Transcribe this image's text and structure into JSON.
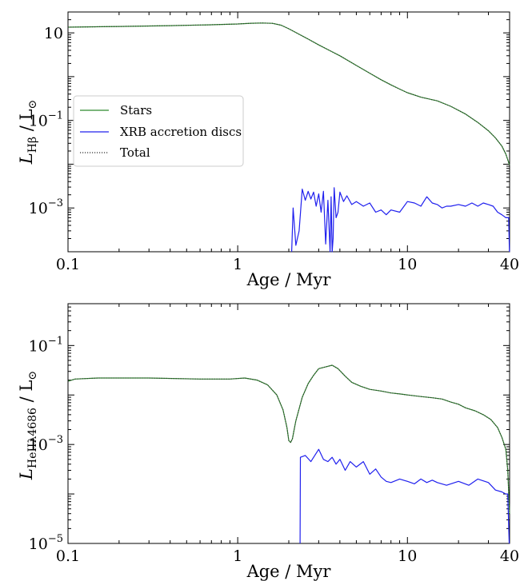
{
  "chart_data": [
    {
      "type": "line",
      "xlabel": "Age / Myr",
      "ylabel": "L_Hβ / L⊙",
      "ylabel_parts": {
        "main": "L",
        "sub": "Hβ",
        "tail": " / L",
        "tail_sub": "⊙"
      },
      "xscale": "log",
      "yscale": "log",
      "xlim": [
        0.1,
        40
      ],
      "ylim": [
        0.0001,
        30
      ],
      "x_ticks": [
        {
          "value": 0.1,
          "label": "0.1"
        },
        {
          "value": 1,
          "label": "1"
        },
        {
          "value": 10,
          "label": "10"
        },
        {
          "value": 40,
          "label": "40"
        }
      ],
      "y_ticks": [
        {
          "value": 10,
          "base": "10",
          "exp": ""
        },
        {
          "value": 0.1,
          "base": "10",
          "exp": "−1"
        },
        {
          "value": 0.001,
          "base": "10",
          "exp": "−3"
        }
      ],
      "legend": {
        "placement": "middle-left",
        "entries": [
          "Stars",
          "XRB accretion discs",
          "Total"
        ]
      },
      "series": [
        {
          "name": "Stars",
          "color": "#2e8b2e",
          "style": "solid",
          "x": [
            0.1,
            0.2,
            0.4,
            0.7,
            1.0,
            1.2,
            1.4,
            1.6,
            1.8,
            2.0,
            2.3,
            2.6,
            3.0,
            3.5,
            4.0,
            5.0,
            6.0,
            7.0,
            8.0,
            9.0,
            10.0,
            12.0,
            15.0,
            18.0,
            22.0,
            26.0,
            30.0,
            33.0,
            36.0,
            38.0,
            40.0
          ],
          "y": [
            13.5,
            14.0,
            14.6,
            15.3,
            16.0,
            16.6,
            16.8,
            16.5,
            15.0,
            12.4,
            9.3,
            7.2,
            5.3,
            3.9,
            3.0,
            1.8,
            1.2,
            0.85,
            0.65,
            0.52,
            0.43,
            0.34,
            0.28,
            0.21,
            0.14,
            0.09,
            0.058,
            0.04,
            0.026,
            0.017,
            0.0095
          ]
        },
        {
          "name": "XRB accretion discs",
          "color": "#2020ee",
          "style": "solid",
          "x": [
            2.08,
            2.12,
            2.2,
            2.3,
            2.4,
            2.5,
            2.6,
            2.7,
            2.8,
            2.9,
            3.0,
            3.1,
            3.2,
            3.3,
            3.4,
            3.5,
            3.55,
            3.6,
            3.65,
            3.7,
            3.8,
            3.9,
            4.0,
            4.2,
            4.4,
            4.7,
            5.0,
            5.5,
            6.0,
            6.5,
            7.0,
            7.5,
            8.0,
            9.0,
            10.0,
            11.0,
            12.0,
            13.0,
            14.0,
            15.0,
            16.0,
            17.0,
            18.0,
            20.0,
            22.0,
            24.0,
            26.0,
            28.0,
            30.0,
            32.0,
            34.0,
            36.0,
            38.0,
            39.5,
            39.9
          ],
          "y": [
            0.0001,
            0.001,
            0.00014,
            0.0003,
            0.0027,
            0.0015,
            0.0024,
            0.0016,
            0.0023,
            0.0011,
            0.0021,
            0.0008,
            0.0024,
            0.00015,
            0.0015,
            0.0001,
            0.0018,
            0.0001,
            0.0002,
            0.0029,
            0.0006,
            0.0008,
            0.0023,
            0.0014,
            0.0019,
            0.0012,
            0.0014,
            0.0011,
            0.0013,
            0.0008,
            0.0009,
            0.0007,
            0.0009,
            0.0008,
            0.0014,
            0.0013,
            0.0011,
            0.0018,
            0.0013,
            0.0012,
            0.001,
            0.0011,
            0.0011,
            0.0012,
            0.0011,
            0.0013,
            0.0011,
            0.0013,
            0.0012,
            0.0011,
            0.0008,
            0.0007,
            0.0006,
            0.0006,
            0.0001
          ]
        },
        {
          "name": "Total",
          "color": "#333333",
          "style": "dotted",
          "x": [
            0.1,
            0.2,
            0.4,
            0.7,
            1.0,
            1.2,
            1.4,
            1.6,
            1.8,
            2.0,
            2.3,
            2.6,
            3.0,
            3.5,
            4.0,
            5.0,
            6.0,
            7.0,
            8.0,
            9.0,
            10.0,
            12.0,
            15.0,
            18.0,
            22.0,
            26.0,
            30.0,
            33.0,
            36.0,
            38.0,
            40.0
          ],
          "y": [
            13.5,
            14.0,
            14.6,
            15.3,
            16.0,
            16.6,
            16.8,
            16.5,
            15.0,
            12.4,
            9.3,
            7.2,
            5.3,
            3.9,
            3.0,
            1.8,
            1.2,
            0.85,
            0.65,
            0.52,
            0.43,
            0.34,
            0.28,
            0.21,
            0.14,
            0.09,
            0.058,
            0.04,
            0.026,
            0.017,
            0.0095
          ]
        }
      ]
    },
    {
      "type": "line",
      "xlabel": "Age / Myr",
      "ylabel": "L_HeIIλ4686 / L⊙",
      "ylabel_parts": {
        "main": "L",
        "sub": "HeIIλ4686",
        "tail": " / L",
        "tail_sub": "⊙"
      },
      "xscale": "log",
      "yscale": "log",
      "xlim": [
        0.1,
        40
      ],
      "ylim": [
        1e-05,
        0.7
      ],
      "x_ticks": [
        {
          "value": 0.1,
          "label": "0.1"
        },
        {
          "value": 1,
          "label": "1"
        },
        {
          "value": 10,
          "label": "10"
        },
        {
          "value": 40,
          "label": "40"
        }
      ],
      "y_ticks": [
        {
          "value": 0.1,
          "base": "10",
          "exp": "−1"
        },
        {
          "value": 0.001,
          "base": "10",
          "exp": "−3"
        },
        {
          "value": 1e-05,
          "base": "10",
          "exp": "−5"
        }
      ],
      "series": [
        {
          "name": "Stars",
          "color": "#2e8b2e",
          "style": "solid",
          "x": [
            0.1,
            0.11,
            0.15,
            0.3,
            0.6,
            0.9,
            1.1,
            1.3,
            1.5,
            1.7,
            1.85,
            1.95,
            2.0,
            2.05,
            2.1,
            2.2,
            2.4,
            2.6,
            2.8,
            3.0,
            3.3,
            3.6,
            3.9,
            4.3,
            4.7,
            5.3,
            6.0,
            7.0,
            8.0,
            9.0,
            10.0,
            12.0,
            14.0,
            16.0,
            18.0,
            20.0,
            22.0,
            25.0,
            28.0,
            31.0,
            34.0,
            36.0,
            38.0,
            39.0,
            40.0
          ],
          "y": [
            0.019,
            0.021,
            0.022,
            0.022,
            0.021,
            0.021,
            0.022,
            0.02,
            0.016,
            0.01,
            0.005,
            0.0022,
            0.0012,
            0.0011,
            0.0013,
            0.003,
            0.009,
            0.017,
            0.025,
            0.034,
            0.037,
            0.04,
            0.034,
            0.024,
            0.018,
            0.015,
            0.013,
            0.012,
            0.011,
            0.0105,
            0.01,
            0.0093,
            0.0088,
            0.0083,
            0.0072,
            0.0065,
            0.0055,
            0.0048,
            0.004,
            0.0032,
            0.0022,
            0.0014,
            0.0008,
            0.0003,
            4e-05
          ]
        },
        {
          "name": "XRB accretion discs",
          "color": "#2020ee",
          "style": "solid",
          "x": [
            2.33,
            2.34,
            2.5,
            2.7,
            3.0,
            3.2,
            3.4,
            3.6,
            3.8,
            4.0,
            4.3,
            4.6,
            5.0,
            5.5,
            6.0,
            6.5,
            7.0,
            7.5,
            8.0,
            9.0,
            10.0,
            11.0,
            12.0,
            13.0,
            14.0,
            15.0,
            17.0,
            20.0,
            23.0,
            26.0,
            30.0,
            33.0,
            36.0,
            38.0,
            39.0,
            39.8
          ],
          "y": [
            1e-05,
            0.00055,
            0.0006,
            0.00045,
            0.0008,
            0.0005,
            0.00045,
            0.00055,
            0.0004,
            0.0005,
            0.0003,
            0.00045,
            0.00035,
            0.00045,
            0.00025,
            0.00032,
            0.00022,
            0.00018,
            0.00017,
            0.0002,
            0.00018,
            0.00016,
            0.0002,
            0.00017,
            0.00019,
            0.00017,
            0.00015,
            0.00018,
            0.00015,
            0.0002,
            0.00017,
            0.00012,
            0.00011,
            0.0001,
            0.0001,
            1e-05
          ]
        },
        {
          "name": "Total",
          "color": "#333333",
          "style": "dotted",
          "x": [
            0.1,
            0.11,
            0.15,
            0.3,
            0.6,
            0.9,
            1.1,
            1.3,
            1.5,
            1.7,
            1.85,
            1.95,
            2.0,
            2.05,
            2.1,
            2.2,
            2.4,
            2.6,
            2.8,
            3.0,
            3.3,
            3.6,
            3.9,
            4.3,
            4.7,
            5.3,
            6.0,
            7.0,
            8.0,
            9.0,
            10.0,
            12.0,
            14.0,
            16.0,
            18.0,
            20.0,
            22.0,
            25.0,
            28.0,
            31.0,
            34.0,
            36.0,
            38.0,
            39.0,
            40.0
          ],
          "y": [
            0.019,
            0.021,
            0.022,
            0.022,
            0.021,
            0.021,
            0.022,
            0.02,
            0.016,
            0.01,
            0.005,
            0.0022,
            0.0012,
            0.0011,
            0.0013,
            0.003,
            0.009,
            0.017,
            0.025,
            0.034,
            0.037,
            0.04,
            0.034,
            0.024,
            0.018,
            0.015,
            0.013,
            0.012,
            0.011,
            0.0105,
            0.01,
            0.0093,
            0.0088,
            0.0083,
            0.0072,
            0.0065,
            0.0055,
            0.0048,
            0.004,
            0.0032,
            0.0022,
            0.0014,
            0.0008,
            0.0003,
            4e-05
          ]
        }
      ]
    }
  ]
}
